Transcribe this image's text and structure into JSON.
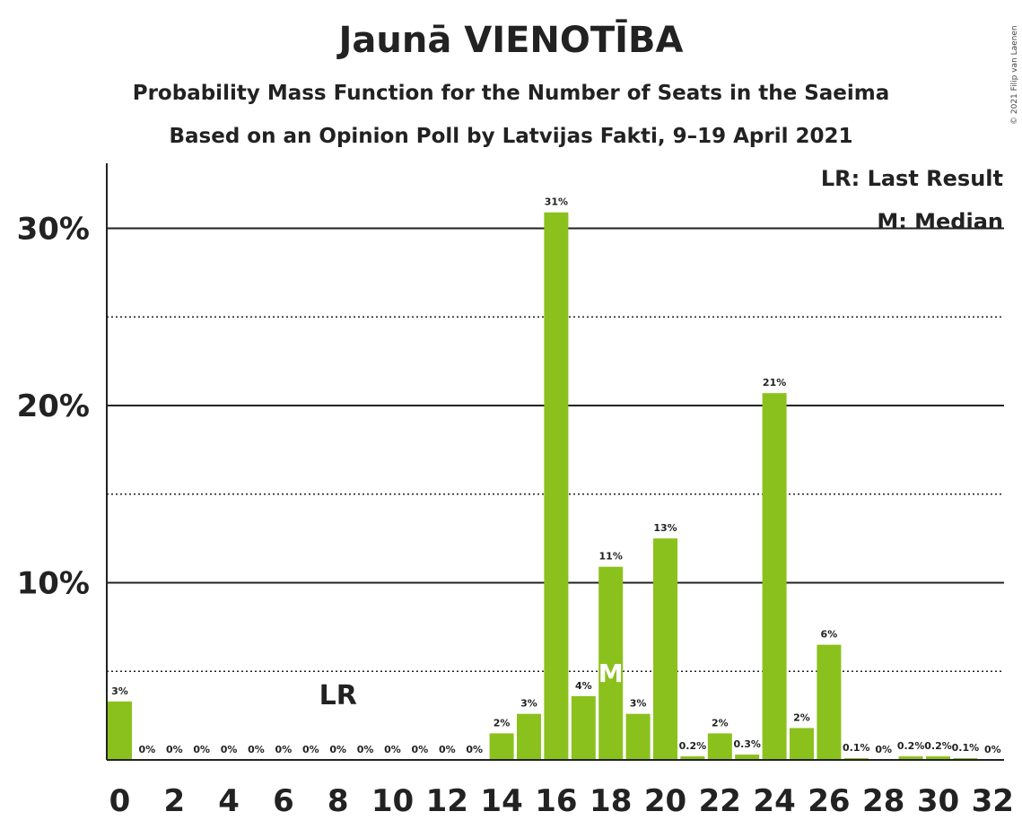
{
  "title": "Jaunā VIENOTĪBA",
  "subtitle1": "Probability Mass Function for the Number of Seats in the Saeima",
  "subtitle2": "Based on an Opinion Poll by Latvijas Fakti, 9–19 April 2021",
  "copyright": "© 2021 Filip van Laenen",
  "legend": {
    "lr": "LR: Last Result",
    "m": "M: Median"
  },
  "colors": {
    "bar": "#8bc11d",
    "axis": "#222222",
    "median_marker": "#ffffff"
  },
  "chart_data": {
    "type": "bar",
    "xlabel": "",
    "ylabel": "",
    "x": [
      0,
      1,
      2,
      3,
      4,
      5,
      6,
      7,
      8,
      9,
      10,
      11,
      12,
      13,
      14,
      15,
      16,
      17,
      18,
      19,
      20,
      21,
      22,
      23,
      24,
      25,
      26,
      27,
      28,
      29,
      30,
      31,
      32
    ],
    "values": [
      3.3,
      0,
      0,
      0,
      0,
      0,
      0,
      0,
      0,
      0,
      0,
      0,
      0,
      0,
      1.5,
      2.6,
      30.9,
      3.6,
      10.9,
      2.6,
      12.5,
      0.2,
      1.5,
      0.3,
      20.7,
      1.8,
      6.5,
      0.1,
      0,
      0.2,
      0.2,
      0.1,
      0
    ],
    "value_labels": [
      "3%",
      "0%",
      "0%",
      "0%",
      "0%",
      "0%",
      "0%",
      "0%",
      "0%",
      "0%",
      "0%",
      "0%",
      "0%",
      "0%",
      "2%",
      "3%",
      "31%",
      "4%",
      "11%",
      "3%",
      "13%",
      "0.2%",
      "2%",
      "0.3%",
      "21%",
      "2%",
      "6%",
      "0.1%",
      "0%",
      "0.2%",
      "0.2%",
      "0.1%",
      "0%"
    ],
    "x_ticks": [
      0,
      2,
      4,
      6,
      8,
      10,
      12,
      14,
      16,
      18,
      20,
      22,
      24,
      26,
      28,
      30,
      32
    ],
    "y_ticks": [
      {
        "value": 10,
        "label": "10%"
      },
      {
        "value": 20,
        "label": "20%"
      },
      {
        "value": 30,
        "label": "30%"
      }
    ],
    "y_dotted_lines": [
      5,
      15,
      25
    ],
    "ylim": [
      0,
      33.5
    ],
    "last_result": {
      "seat": 8,
      "label": "LR"
    },
    "median": {
      "seat": 18,
      "label": "M"
    }
  }
}
